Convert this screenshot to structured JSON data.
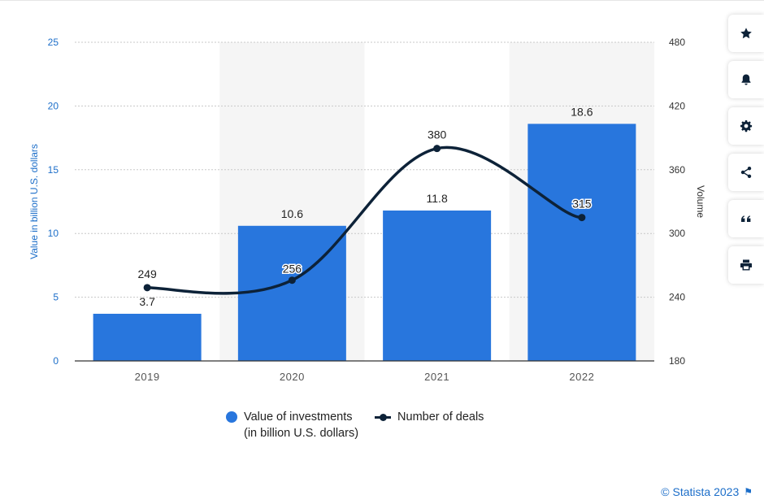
{
  "chart_data": {
    "type": "bar",
    "categories": [
      "2019",
      "2020",
      "2021",
      "2022"
    ],
    "series": [
      {
        "name": "Value of investments (in billion U.S. dollars)",
        "type": "bar",
        "axis": "left",
        "values": [
          3.7,
          10.6,
          11.8,
          18.6
        ],
        "labels": [
          "3.7",
          "10.6",
          "11.8",
          "18.6"
        ]
      },
      {
        "name": "Number of deals",
        "type": "line",
        "axis": "right",
        "values": [
          249,
          256,
          380,
          315
        ],
        "labels": [
          "249",
          "256",
          "380",
          "315"
        ]
      }
    ],
    "ylabel": "Value in billion U.S. dollars",
    "y2label": "Volume",
    "ylim": [
      0,
      25
    ],
    "y2lim": [
      180,
      480
    ],
    "yticks": [
      "0",
      "5",
      "10",
      "15",
      "20",
      "25"
    ],
    "y2ticks": [
      "180",
      "240",
      "300",
      "360",
      "420",
      "480"
    ],
    "grid": true,
    "legend": {
      "position": "bottom-center",
      "items": [
        "Value of investments",
        "Number of deals"
      ]
    }
  },
  "legend": {
    "bar_line1": "Value of investments",
    "bar_line2": "(in billion U.S. dollars)",
    "line_label": "Number of deals"
  },
  "credit": "© Statista 2023",
  "toolbar": [
    "star-icon",
    "bell-icon",
    "gear-icon",
    "share-icon",
    "quote-icon",
    "print-icon"
  ],
  "colors": {
    "bar": "#2876dd",
    "line": "#0d2238",
    "axis_left": "#1c6ec9",
    "shade": "#f5f5f5"
  }
}
